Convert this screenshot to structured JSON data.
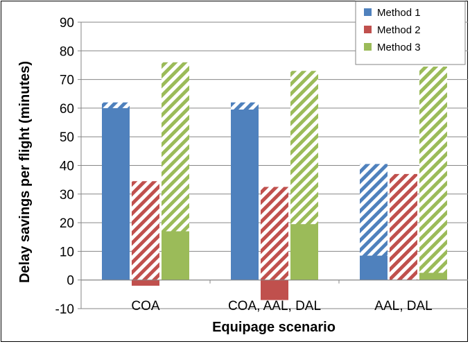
{
  "chart_data": {
    "type": "bar",
    "title": "",
    "xlabel": "Equipage scenario",
    "ylabel": "Delay savings per flight (minutes)",
    "ylim": [
      -10,
      90
    ],
    "yticks": [
      -10,
      0,
      10,
      20,
      30,
      40,
      50,
      60,
      70,
      80,
      90
    ],
    "grid": "horizontal",
    "legend_position": "top-right",
    "categories": [
      "COA",
      "COA, AAL, DAL",
      "AAL, DAL"
    ],
    "series": [
      {
        "name": "Method 1",
        "color": "#4f81bd",
        "solid": [
          60,
          59.5,
          8.5
        ],
        "total": [
          62,
          62,
          40.5
        ]
      },
      {
        "name": "Method 2",
        "color": "#c0504d",
        "solid": [
          -2,
          -7,
          0
        ],
        "total": [
          34.5,
          32.5,
          37
        ]
      },
      {
        "name": "Method 3",
        "color": "#9bbb59",
        "solid": [
          17,
          19.5,
          2.5
        ],
        "total": [
          76,
          73,
          74.5
        ]
      }
    ]
  }
}
